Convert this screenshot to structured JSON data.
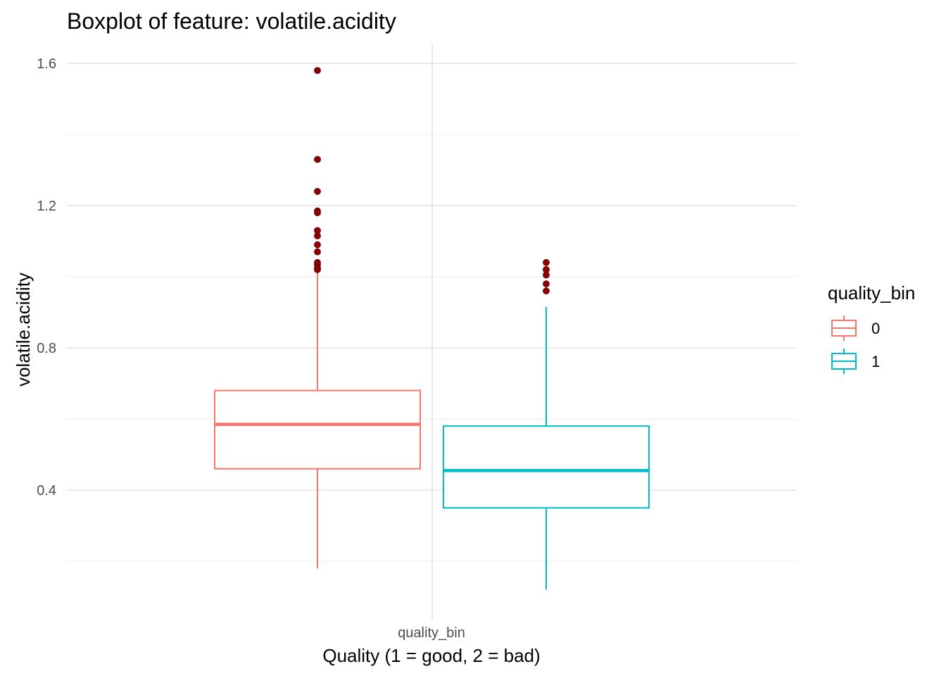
{
  "chart_data": {
    "type": "boxplot",
    "title": "Boxplot of feature: volatile.acidity",
    "xlabel": "Quality (1 = good, 2 = bad)",
    "ylabel": "volatile.acidity",
    "x_category_label": "quality_bin",
    "ylim": [
      0.08,
      1.665
    ],
    "y_ticks": [
      0.4,
      0.8,
      1.2,
      1.6
    ],
    "y_tick_labels": [
      "0.4",
      "0.8",
      "1.2",
      "1.6"
    ],
    "grid": true,
    "outlier_color": "#8B0000",
    "legend": {
      "title": "quality_bin",
      "placement": "right",
      "entries": [
        {
          "label": "0",
          "color": "#F8766D"
        },
        {
          "label": "1",
          "color": "#00BFC4"
        }
      ]
    },
    "series": [
      {
        "name": "0",
        "color": "#F8766D",
        "min": 0.18,
        "q1": 0.46,
        "median": 0.585,
        "q3": 0.68,
        "max": 1.01,
        "outliers": [
          1.58,
          1.33,
          1.24,
          1.185,
          1.18,
          1.13,
          1.115,
          1.09,
          1.07,
          1.04,
          1.035,
          1.025,
          1.02
        ]
      },
      {
        "name": "1",
        "color": "#00BFC4",
        "min": 0.12,
        "q1": 0.35,
        "median": 0.455,
        "q3": 0.58,
        "max": 0.915,
        "outliers": [
          1.04,
          1.02,
          1.005,
          0.98,
          0.96
        ]
      }
    ]
  }
}
